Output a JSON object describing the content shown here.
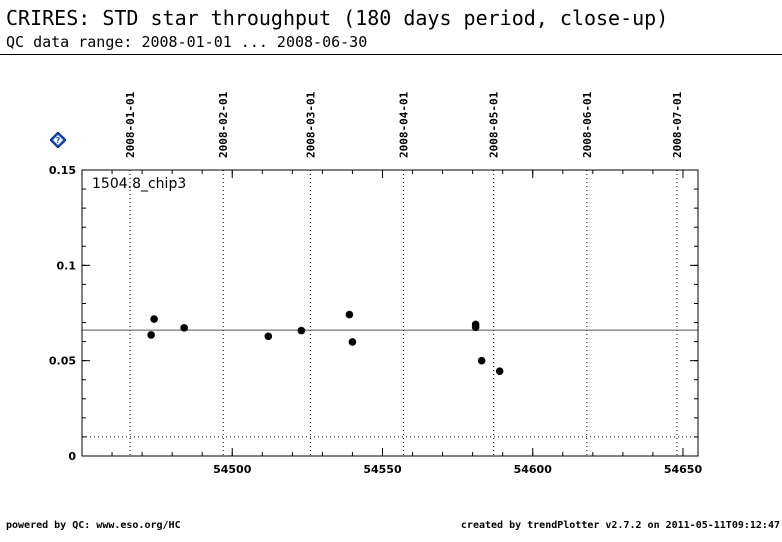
{
  "header": {
    "title": "CRIRES: STD star throughput (180 days period, close-up)",
    "subtitle": "QC data range: 2008-01-01 ... 2008-06-30"
  },
  "footer": {
    "left": "powered by QC: www.eso.org/HC",
    "right": "created by trendPlotter v2.7.2 on 2011-05-11T09:12:47"
  },
  "help_icon": "help-diamond-icon",
  "chart_data": {
    "type": "scatter",
    "series_label": "1504.8_chip3",
    "x_axis": {
      "min": 54450,
      "max": 54655,
      "ticks": [
        54500,
        54550,
        54600,
        54650
      ],
      "tick_labels": [
        "54500",
        "54550",
        "54600",
        "54650"
      ]
    },
    "y_axis": {
      "min": 0,
      "max": 0.15,
      "ticks": [
        0,
        0.05,
        0.1,
        0.15
      ],
      "tick_labels": [
        "0",
        "0.05",
        "0.1",
        "0.15"
      ]
    },
    "date_markers": [
      {
        "label": "2008-01-01",
        "x": 54466
      },
      {
        "label": "2008-02-01",
        "x": 54497
      },
      {
        "label": "2008-03-01",
        "x": 54526
      },
      {
        "label": "2008-04-01",
        "x": 54557
      },
      {
        "label": "2008-05-01",
        "x": 54587
      },
      {
        "label": "2008-06-01",
        "x": 54618
      },
      {
        "label": "2008-07-01",
        "x": 54648
      }
    ],
    "reference_line": 0.066,
    "lower_threshold": 0.01,
    "points": [
      {
        "x": 54473,
        "y": 0.0635
      },
      {
        "x": 54474,
        "y": 0.0718
      },
      {
        "x": 54484,
        "y": 0.0672
      },
      {
        "x": 54512,
        "y": 0.0628
      },
      {
        "x": 54523,
        "y": 0.0658
      },
      {
        "x": 54539,
        "y": 0.0742
      },
      {
        "x": 54540,
        "y": 0.0598
      },
      {
        "x": 54581,
        "y": 0.069
      },
      {
        "x": 54581,
        "y": 0.0675
      },
      {
        "x": 54583,
        "y": 0.05
      },
      {
        "x": 54589,
        "y": 0.0445
      }
    ],
    "point_color": "#000000",
    "grid": "dotted verticals at month starts"
  }
}
